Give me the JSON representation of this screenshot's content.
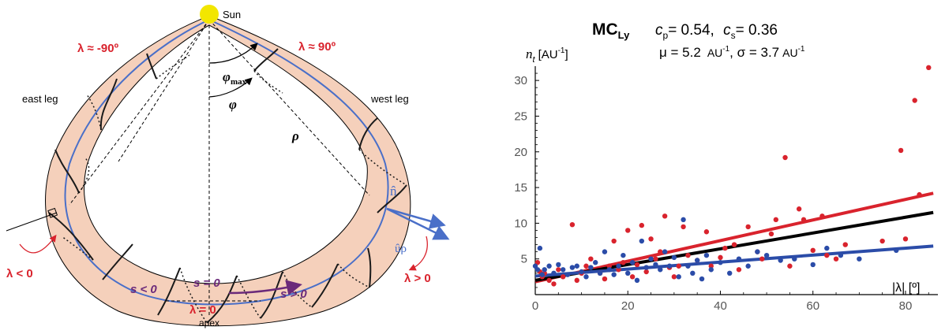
{
  "diagram": {
    "labels": {
      "sun": "Sun",
      "lambda_east": "λ ≈ -90º",
      "lambda_west": "λ ≈ 90º",
      "east_leg": "east leg",
      "west_leg": "west leg",
      "phi_max": "φmax",
      "phi_max_main": "φ",
      "phi_max_sub": "max",
      "phi": "φ",
      "rho": "ρ",
      "n_hat": "n̂",
      "u_rho": "ûρ",
      "lambda_lt0": "λ < 0",
      "lambda_gt0": "λ > 0",
      "s_lt0": "s < 0",
      "s_gt0": "s > 0",
      "s_eq0": "s = 0",
      "lambda_eq0": "λ = 0",
      "apex": "apex"
    },
    "colors": {
      "tube_fill": "#f5d0bb",
      "axis_blue": "#4a6fc8",
      "label_red": "#d9232d",
      "s_purple": "#6b2a7a",
      "sun_yellow": "#f2e600"
    }
  },
  "chart_data": {
    "type": "scatter",
    "title_main": "MC",
    "title_sub": "Ly",
    "title_params": {
      "cp_label": "c",
      "cp_sub": "p",
      "cp_value": "= 0.54,",
      "cs_label": "c",
      "cs_sub": "s",
      "cs_value": "= 0.36"
    },
    "stats": {
      "mu": "μ = 5.2",
      "sigma": ", σ = 3.7",
      "unit": "AU",
      "unit_exp": "-1"
    },
    "ylabel_main": "n",
    "ylabel_sub": "t",
    "ylabel_unit": "[AU",
    "ylabel_exp": "-1",
    "ylabel_close": "]",
    "xlabel": "|λ| [º]",
    "xlim": [
      0,
      87
    ],
    "ylim": [
      0,
      32
    ],
    "xticks": [
      0,
      20,
      40,
      60,
      80
    ],
    "yticks": [
      5,
      10,
      15,
      20,
      25,
      30
    ],
    "series": [
      {
        "color": "#d9232d",
        "line": [
          [
            0,
            1.8
          ],
          [
            86,
            14.2
          ]
        ],
        "points": [
          [
            0.5,
            4.5
          ],
          [
            1,
            3.2
          ],
          [
            1.5,
            2.5
          ],
          [
            2,
            3.0
          ],
          [
            3,
            2.0
          ],
          [
            4,
            1.5
          ],
          [
            5,
            3.5
          ],
          [
            6,
            2.5
          ],
          [
            8,
            9.8
          ],
          [
            9,
            2.0
          ],
          [
            10,
            3.0
          ],
          [
            11,
            4.0
          ],
          [
            12,
            5.0
          ],
          [
            14,
            3.0
          ],
          [
            15,
            2.2
          ],
          [
            16,
            4.0
          ],
          [
            17,
            7.5
          ],
          [
            18,
            3.5
          ],
          [
            19,
            4.5
          ],
          [
            20,
            9.0
          ],
          [
            21,
            2.5
          ],
          [
            22,
            4.2
          ],
          [
            23,
            9.7
          ],
          [
            24,
            3.2
          ],
          [
            25,
            7.8
          ],
          [
            26,
            5.0
          ],
          [
            27,
            6.0
          ],
          [
            28,
            11.0
          ],
          [
            29,
            3.8
          ],
          [
            30,
            2.5
          ],
          [
            31,
            4.0
          ],
          [
            32,
            9.5
          ],
          [
            33,
            5.5
          ],
          [
            35,
            4.8
          ],
          [
            37,
            8.8
          ],
          [
            38,
            4.0
          ],
          [
            40,
            5.2
          ],
          [
            41,
            6.5
          ],
          [
            43,
            7.0
          ],
          [
            44,
            3.5
          ],
          [
            46,
            9.5
          ],
          [
            48,
            6.0
          ],
          [
            49,
            5.0
          ],
          [
            51,
            8.5
          ],
          [
            52,
            10.5
          ],
          [
            54,
            19.2
          ],
          [
            55,
            4.0
          ],
          [
            57,
            12.0
          ],
          [
            58,
            10.5
          ],
          [
            60,
            6.2
          ],
          [
            62,
            11.0
          ],
          [
            63,
            5.5
          ],
          [
            65,
            5.0
          ],
          [
            67,
            7.0
          ],
          [
            75,
            7.5
          ],
          [
            79,
            20.2
          ],
          [
            80,
            7.8
          ],
          [
            82,
            27.2
          ],
          [
            83,
            14.0
          ],
          [
            85,
            31.8
          ]
        ]
      },
      {
        "color": "#000000",
        "line": [
          [
            0,
            2.0
          ],
          [
            86,
            11.5
          ]
        ],
        "points": []
      },
      {
        "color": "#2b4ca8",
        "line": [
          [
            0,
            2.6
          ],
          [
            86,
            6.8
          ]
        ],
        "points": [
          [
            0,
            4.0
          ],
          [
            0.5,
            3.5
          ],
          [
            1,
            6.5
          ],
          [
            1.5,
            2.8
          ],
          [
            2,
            3.5
          ],
          [
            3,
            4.0
          ],
          [
            4,
            3.0
          ],
          [
            5,
            4.2
          ],
          [
            6,
            3.5
          ],
          [
            7,
            2.8
          ],
          [
            8,
            3.8
          ],
          [
            9,
            4.0
          ],
          [
            10,
            3.2
          ],
          [
            11,
            2.5
          ],
          [
            12,
            3.8
          ],
          [
            13,
            4.5
          ],
          [
            14,
            3.0
          ],
          [
            15,
            6.0
          ],
          [
            16,
            3.5
          ],
          [
            17,
            2.8
          ],
          [
            18,
            4.0
          ],
          [
            19,
            5.5
          ],
          [
            20,
            3.0
          ],
          [
            21,
            4.5
          ],
          [
            22,
            2.0
          ],
          [
            23,
            7.5
          ],
          [
            24,
            3.8
          ],
          [
            25,
            5.0
          ],
          [
            26,
            4.2
          ],
          [
            27,
            3.5
          ],
          [
            28,
            6.0
          ],
          [
            29,
            4.0
          ],
          [
            30,
            5.2
          ],
          [
            31,
            2.5
          ],
          [
            32,
            10.5
          ],
          [
            33,
            4.0
          ],
          [
            34,
            3.0
          ],
          [
            35,
            4.8
          ],
          [
            36,
            2.2
          ],
          [
            37,
            5.5
          ],
          [
            38,
            3.5
          ],
          [
            40,
            4.5
          ],
          [
            42,
            3.0
          ],
          [
            44,
            5.0
          ],
          [
            46,
            4.0
          ],
          [
            48,
            6.0
          ],
          [
            50,
            5.5
          ],
          [
            53,
            4.8
          ],
          [
            56,
            5.0
          ],
          [
            60,
            4.2
          ],
          [
            63,
            6.5
          ],
          [
            66,
            5.5
          ],
          [
            70,
            5.0
          ],
          [
            78,
            6.2
          ]
        ]
      }
    ]
  }
}
